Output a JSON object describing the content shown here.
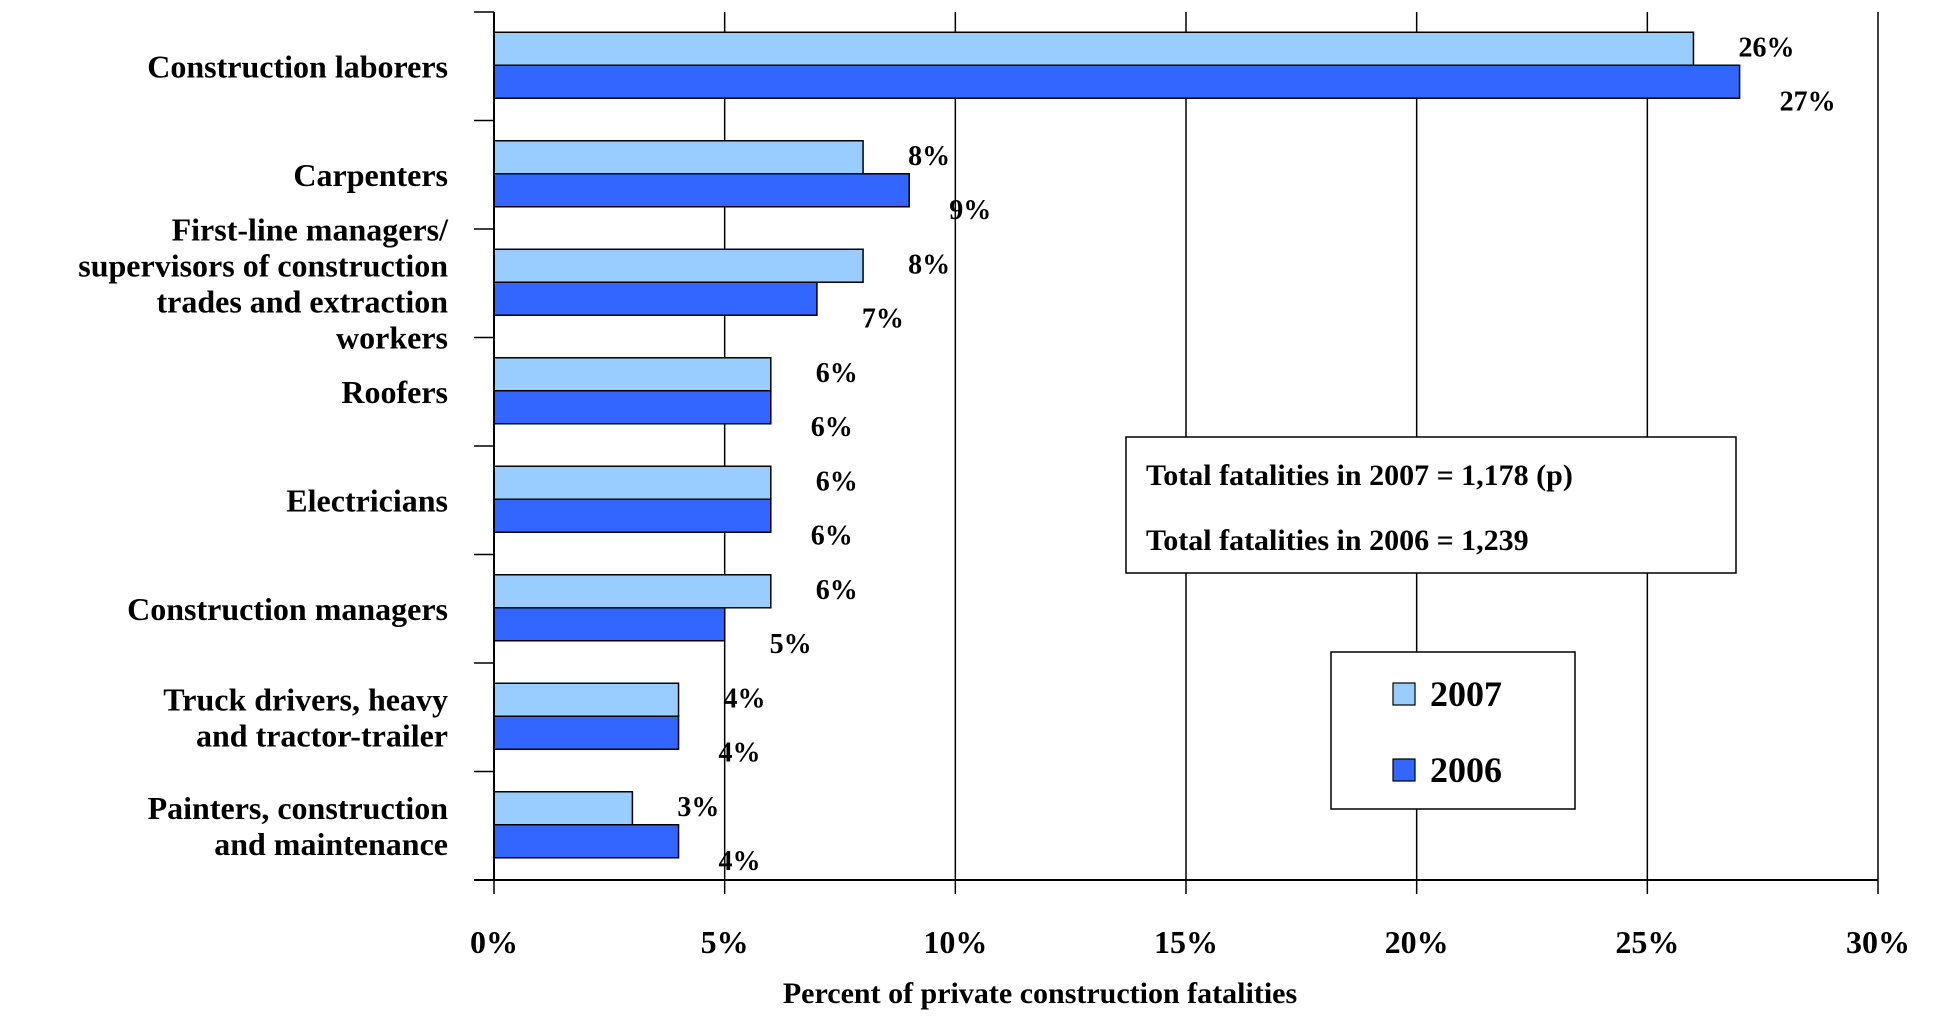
{
  "chart_data": {
    "type": "bar",
    "orientation": "horizontal",
    "categories": [
      [
        "Construction laborers"
      ],
      [
        "Carpenters"
      ],
      [
        "First-line managers/",
        "supervisors of construction",
        "trades and extraction",
        "workers"
      ],
      [
        "Roofers"
      ],
      [
        "Electricians"
      ],
      [
        "Construction managers"
      ],
      [
        "Truck drivers, heavy",
        "and tractor-trailer"
      ],
      [
        "Painters, construction",
        "and maintenance"
      ]
    ],
    "series": [
      {
        "name": "2007",
        "color": "#99ccff",
        "values": [
          26,
          8,
          8,
          6,
          6,
          6,
          4,
          3
        ],
        "labels": [
          "26%",
          "8%",
          "8%",
          "6%",
          "6%",
          "6%",
          "4%",
          "3%"
        ]
      },
      {
        "name": "2006",
        "color": "#3366ff",
        "values": [
          27,
          9,
          7,
          6,
          6,
          5,
          4,
          4
        ],
        "labels": [
          "27%",
          "9%",
          "7%",
          "6%",
          "6%",
          "5%",
          "4%",
          "4%"
        ]
      }
    ],
    "xlim": [
      0,
      30
    ],
    "xticks": [
      0,
      5,
      10,
      15,
      20,
      25,
      30
    ],
    "xtick_labels": [
      "0%",
      "5%",
      "10%",
      "15%",
      "20%",
      "25%",
      "30%"
    ],
    "xlabel": "Percent of private construction fatalities",
    "ylabel": "",
    "title": "",
    "grid": "vertical",
    "legend_position": "lower-right",
    "annotations": [
      "Total fatalities in 2007 = 1,178 (p)",
      "Total fatalities in 2006 = 1,239"
    ]
  }
}
